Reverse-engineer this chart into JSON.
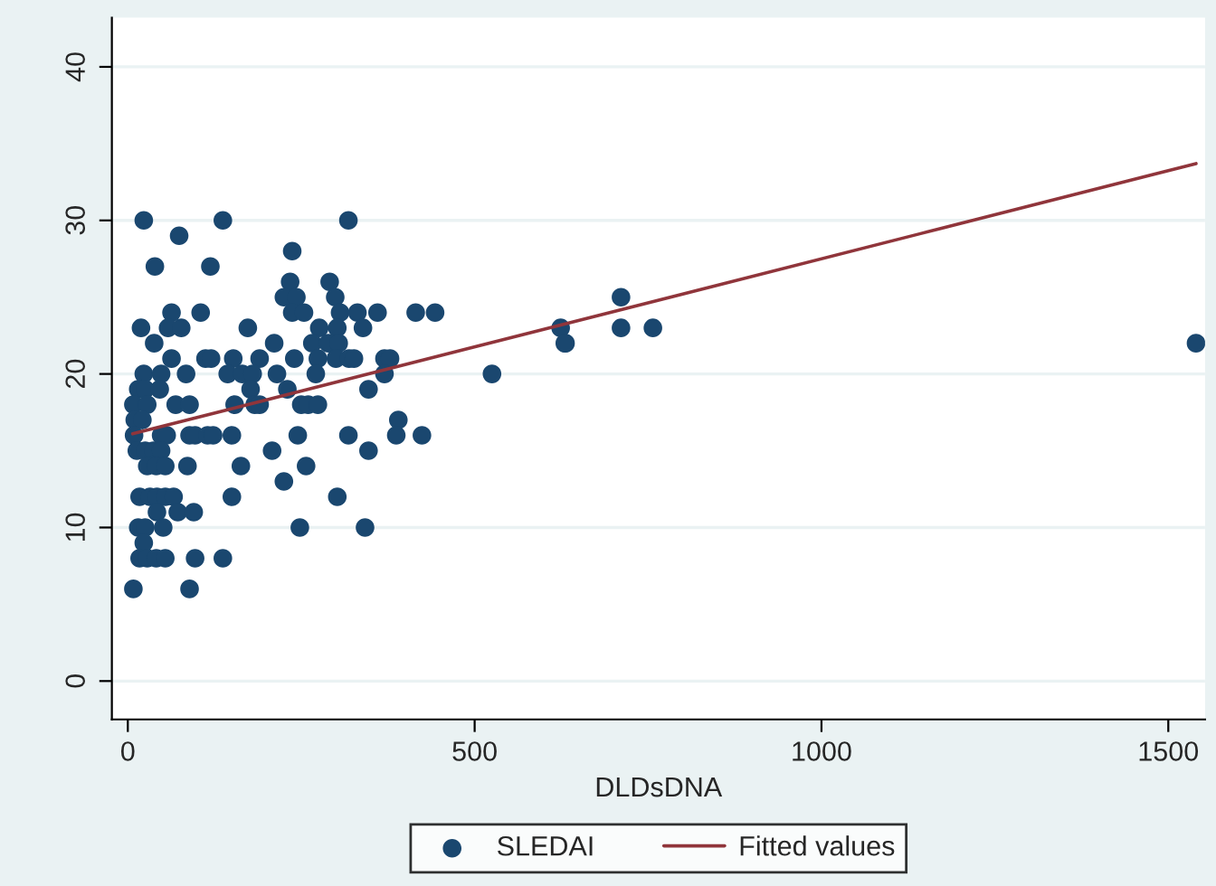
{
  "chart_data": {
    "type": "scatter",
    "xlabel": "DLDsDNA",
    "xlim": [
      -23,
      1553
    ],
    "ylim": [
      -2.5,
      43.2
    ],
    "xticks": [
      0,
      500,
      1000,
      1500
    ],
    "yticks": [
      0,
      10,
      20,
      30,
      40
    ],
    "grid": "y",
    "legend": "bottom",
    "series": [
      {
        "name": "SLEDAI",
        "color": "#1a476f",
        "marker": "circle",
        "x": [
          23,
          137,
          318,
          74,
          237,
          39,
          119,
          234,
          291,
          225,
          243,
          299,
          63,
          105,
          237,
          254,
          306,
          331,
          360,
          415,
          443,
          19,
          58,
          77,
          173,
          276,
          302,
          339,
          624,
          711,
          38,
          211,
          266,
          289,
          304,
          631,
          630,
          63,
          112,
          120,
          152,
          190,
          240,
          274,
          300,
          319,
          326,
          370,
          378,
          23,
          48,
          84,
          144,
          165,
          180,
          215,
          271,
          370,
          525,
          15,
          25,
          46,
          177,
          230,
          347,
          8,
          28,
          69,
          89,
          154,
          183,
          190,
          250,
          260,
          274,
          10,
          21,
          390,
          9,
          48,
          56,
          89,
          97,
          115,
          123,
          150,
          245,
          318,
          387,
          424,
          13,
          25,
          37,
          48,
          208,
          347,
          28,
          41,
          54,
          86,
          163,
          257,
          225,
          17,
          32,
          42,
          54,
          66,
          150,
          302,
          42,
          72,
          95,
          15,
          25,
          51,
          248,
          342,
          23,
          17,
          28,
          41,
          54,
          97,
          137,
          8,
          89,
          711,
          757,
          1540
        ],
        "values": [
          30,
          30,
          30,
          29,
          28,
          27,
          27,
          26,
          26,
          25,
          25,
          25,
          24,
          24,
          24,
          24,
          24,
          24,
          24,
          24,
          24,
          23,
          23,
          23,
          23,
          23,
          23,
          23,
          23,
          23,
          22,
          22,
          22,
          22,
          22,
          22,
          22,
          21,
          21,
          21,
          21,
          21,
          21,
          21,
          21,
          21,
          21,
          21,
          21,
          20,
          20,
          20,
          20,
          20,
          20,
          20,
          20,
          20,
          20,
          19,
          19,
          19,
          19,
          19,
          19,
          18,
          18,
          18,
          18,
          18,
          18,
          18,
          18,
          18,
          18,
          17,
          17,
          17,
          16,
          16,
          16,
          16,
          16,
          16,
          16,
          16,
          16,
          16,
          16,
          16,
          15,
          15,
          15,
          15,
          15,
          15,
          14,
          14,
          14,
          14,
          14,
          14,
          13,
          12,
          12,
          12,
          12,
          12,
          12,
          12,
          11,
          11,
          11,
          10,
          10,
          10,
          10,
          10,
          9,
          8,
          8,
          8,
          8,
          8,
          8,
          6,
          6,
          25,
          23,
          22
        ]
      },
      {
        "name": "Fitted values",
        "color": "#90353b",
        "type": "line",
        "x": [
          7,
          1540
        ],
        "values": [
          16.1,
          33.7
        ]
      }
    ]
  }
}
